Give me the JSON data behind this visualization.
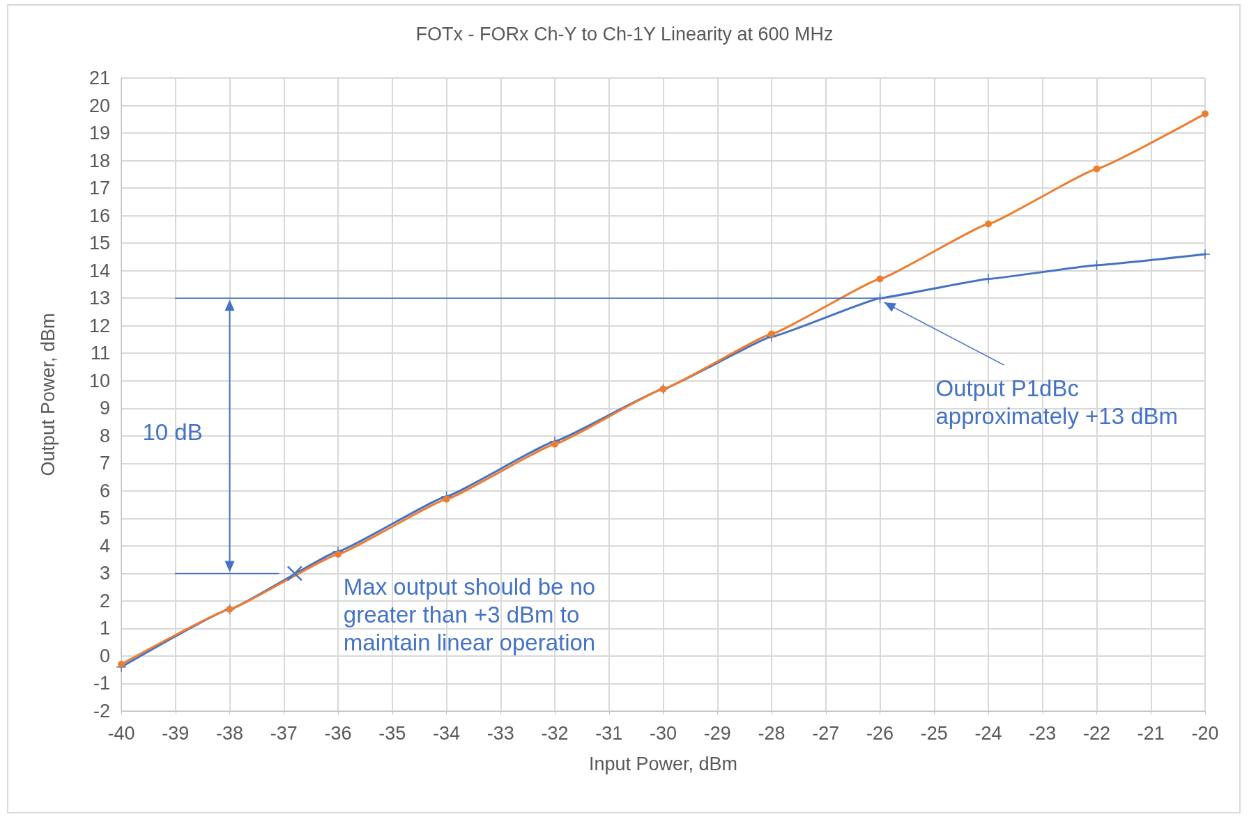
{
  "chart_data": {
    "type": "line",
    "title": "FOTx - FORx Ch-Y to Ch-1Y Linearity at 600 MHz",
    "xlabel": "Input Power, dBm",
    "ylabel": "Output Power, dBm",
    "x": [
      -40,
      -38,
      -36,
      -34,
      -32,
      -30,
      -28,
      -26,
      -24,
      -22,
      -20
    ],
    "series": [
      {
        "color": "#4472c4",
        "marker": "cross",
        "values": [
          -0.4,
          1.7,
          3.8,
          5.8,
          7.8,
          9.7,
          11.6,
          13.0,
          13.7,
          14.2,
          14.6
        ]
      },
      {
        "color": "#ed7d31",
        "marker": "circle",
        "values": [
          -0.3,
          1.7,
          3.7,
          5.7,
          7.7,
          9.7,
          11.7,
          13.7,
          15.7,
          17.7,
          19.7
        ]
      },
      {
        "color": "#4472c4",
        "marker": "none",
        "x": [
          -39,
          -26
        ],
        "values": [
          13,
          13
        ]
      },
      {
        "color": "#4472c4",
        "marker": "none",
        "x": [
          -39,
          -37.1
        ],
        "values": [
          3,
          3
        ]
      }
    ],
    "xlim": [
      -40,
      -20
    ],
    "xticks": [
      -40,
      -39,
      -38,
      -37,
      -36,
      -35,
      -34,
      -33,
      -32,
      -31,
      -30,
      -29,
      -28,
      -27,
      -26,
      -25,
      -24,
      -23,
      -22,
      -21,
      -20
    ],
    "ylim": [
      -2,
      21
    ],
    "yticks": [
      -2,
      -1,
      0,
      1,
      2,
      3,
      4,
      5,
      6,
      7,
      8,
      9,
      10,
      11,
      12,
      13,
      14,
      15,
      16,
      17,
      18,
      19,
      20,
      21
    ],
    "grid": true,
    "line_style": "solid",
    "annotations": [
      {
        "text": "Output P1dBc\napproximately +13 dBm",
        "x": -26,
        "y": 13
      },
      {
        "text": "Max output should be no greater than +3 dBm to maintain linear operation",
        "x": -36.8,
        "y": 3
      },
      "10 dB"
    ]
  }
}
